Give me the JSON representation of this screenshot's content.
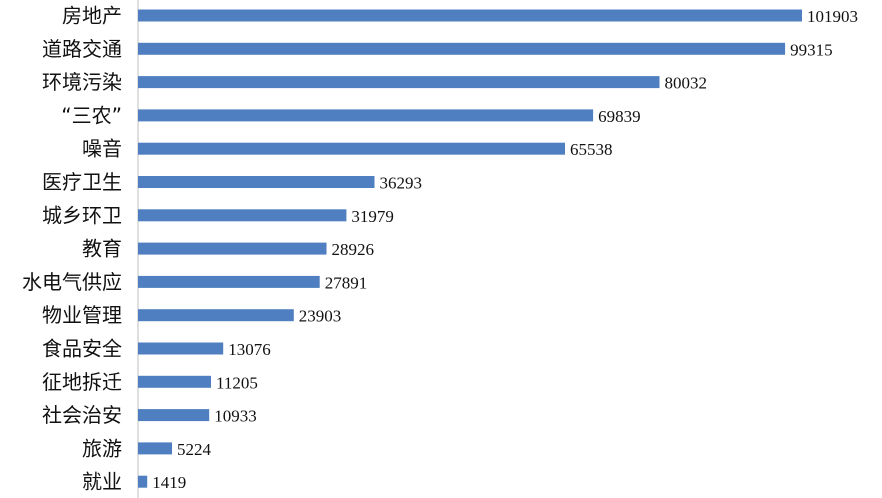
{
  "chart_data": {
    "type": "bar",
    "orientation": "horizontal",
    "categories": [
      "房地产",
      "道路交通",
      "环境污染",
      "“三农”",
      "噪音",
      "医疗卫生",
      "城乡环卫",
      "教育",
      "水电气供应",
      "物业管理",
      "食品安全",
      "征地拆迁",
      "社会治安",
      "旅游",
      "就业"
    ],
    "values": [
      101903,
      99315,
      80032,
      69839,
      65538,
      36293,
      31979,
      28926,
      27891,
      23903,
      13076,
      11205,
      10933,
      5224,
      1419
    ],
    "data_labels": [
      "101903",
      "99315",
      "80032",
      "69839",
      "65538",
      "36293",
      "31979",
      "28926",
      "27891",
      "23903",
      "13076",
      "11205",
      "10933",
      "5224",
      "1419"
    ],
    "bar_color": "#4f7fc0",
    "grid": false,
    "legend": "none"
  }
}
